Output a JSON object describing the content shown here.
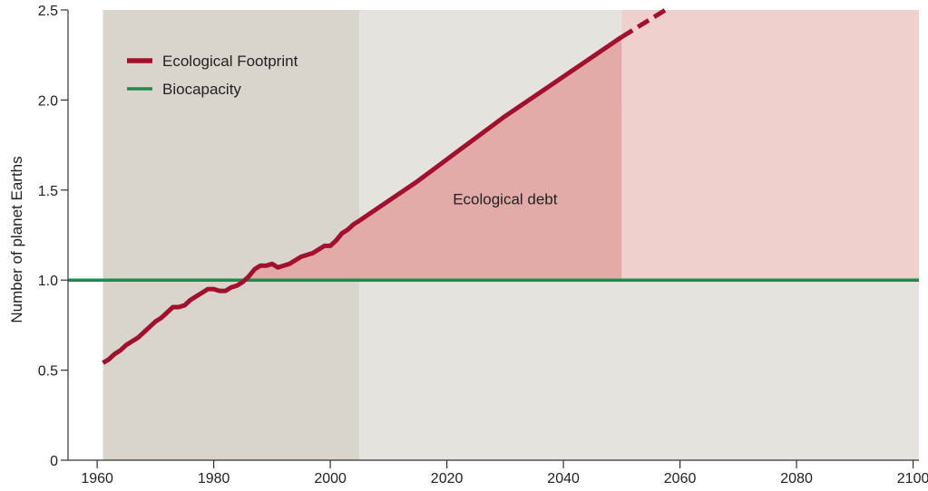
{
  "chart_data": {
    "type": "line",
    "title": "",
    "xlabel": "",
    "ylabel": "Number of planet Earths",
    "xlim": [
      1955,
      2101
    ],
    "ylim": [
      0,
      2.5
    ],
    "x_ticks": [
      1960,
      1980,
      2000,
      2020,
      2040,
      2060,
      2080,
      2100
    ],
    "x_tick_labels": [
      "1960",
      "1980",
      "2000",
      "2020",
      "2040",
      "2060",
      "2080",
      "2100"
    ],
    "y_ticks": [
      0,
      0.5,
      1.0,
      1.5,
      2.0,
      2.5
    ],
    "y_tick_labels": [
      "0",
      "0.5",
      "1.0",
      "1.5",
      "2.0",
      "2.5"
    ],
    "grid": false,
    "legend_position": "top-left",
    "colors": {
      "footprint": "#a3102f",
      "biocapacity": "#1f8a4c",
      "historical_band": "#d9d5cd",
      "projection_band": "#e5e3de",
      "debt_fill": "#e3aba8",
      "future_debt_band": "#f0d0cd"
    },
    "regions": {
      "historical": [
        1961,
        2005
      ],
      "projection": [
        2005,
        2101
      ],
      "debt_fill_end": 2050,
      "future_band_start": 2050
    },
    "series": [
      {
        "name": "Ecological Footprint",
        "style": "solid",
        "x": [
          1961,
          1962,
          1963,
          1964,
          1965,
          1966,
          1967,
          1968,
          1969,
          1970,
          1971,
          1972,
          1973,
          1974,
          1975,
          1976,
          1977,
          1978,
          1979,
          1980,
          1981,
          1982,
          1983,
          1984,
          1985,
          1986,
          1987,
          1988,
          1989,
          1990,
          1991,
          1992,
          1993,
          1994,
          1995,
          1996,
          1997,
          1998,
          1999,
          2000,
          2001,
          2002,
          2003,
          2004,
          2005,
          2010,
          2015,
          2020,
          2025,
          2030,
          2035,
          2040,
          2045,
          2050
        ],
        "values": [
          0.54,
          0.56,
          0.59,
          0.61,
          0.64,
          0.66,
          0.68,
          0.71,
          0.74,
          0.77,
          0.79,
          0.82,
          0.85,
          0.85,
          0.86,
          0.89,
          0.91,
          0.93,
          0.95,
          0.95,
          0.94,
          0.94,
          0.96,
          0.97,
          0.99,
          1.02,
          1.06,
          1.08,
          1.08,
          1.09,
          1.07,
          1.08,
          1.09,
          1.11,
          1.13,
          1.14,
          1.15,
          1.17,
          1.19,
          1.19,
          1.22,
          1.26,
          1.28,
          1.31,
          1.33,
          1.44,
          1.55,
          1.67,
          1.79,
          1.91,
          2.02,
          2.13,
          2.24,
          2.35
        ]
      },
      {
        "name": "Ecological Footprint projection",
        "style": "dashed",
        "x": [
          2050,
          2058
        ],
        "values": [
          2.35,
          2.51
        ]
      },
      {
        "name": "Biocapacity",
        "style": "solid",
        "x": [
          1955,
          2101
        ],
        "values": [
          1.0,
          1.0
        ]
      }
    ],
    "legend": [
      {
        "label": "Ecological Footprint",
        "color": "#a3102f"
      },
      {
        "label": "Biocapacity",
        "color": "#1f8a4c"
      }
    ],
    "annotations": [
      {
        "text": "Ecological debt",
        "x": 2030,
        "y": 1.42
      }
    ]
  }
}
